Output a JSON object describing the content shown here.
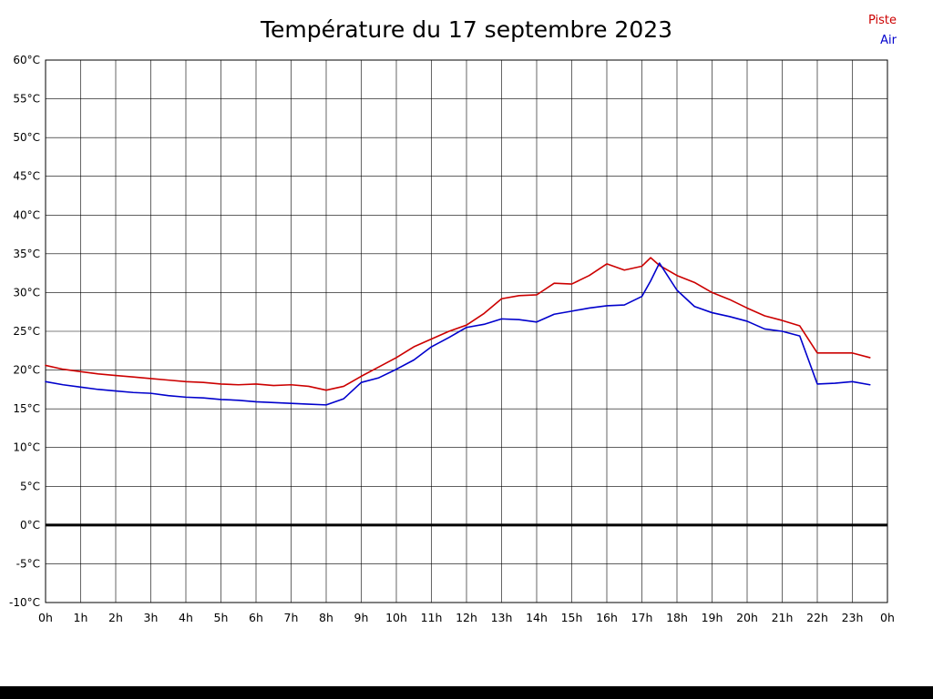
{
  "title": "Température du 17 septembre 2023",
  "legend": [
    {
      "label": "Piste",
      "color": "#cc0000"
    },
    {
      "label": "Air",
      "color": "#0000cc"
    }
  ],
  "chart_data": {
    "type": "line",
    "title": "Température du 17 septembre 2023",
    "xlabel": "",
    "ylabel": "",
    "ylim": [
      -10,
      60
    ],
    "ytick_step": 5,
    "ytick_suffix": "°C",
    "grid": true,
    "zero_line_value": 0,
    "legend_position": "top-right",
    "xtick_labels": [
      "0h",
      "1h",
      "2h",
      "3h",
      "4h",
      "5h",
      "6h",
      "7h",
      "8h",
      "9h",
      "10h",
      "11h",
      "12h",
      "13h",
      "14h",
      "15h",
      "16h",
      "17h",
      "18h",
      "19h",
      "20h",
      "21h",
      "22h",
      "23h",
      "0h"
    ],
    "x_hours": [
      0,
      0.5,
      1,
      1.5,
      2,
      2.5,
      3,
      3.5,
      4,
      4.5,
      5,
      5.5,
      6,
      6.5,
      7,
      7.5,
      8,
      8.5,
      9,
      9.5,
      10,
      10.5,
      11,
      11.5,
      12,
      12.5,
      13,
      13.5,
      14,
      14.5,
      15,
      15.5,
      16,
      16.5,
      17,
      17.25,
      17.5,
      18,
      18.5,
      19,
      19.5,
      20,
      20.5,
      21,
      21.5,
      22,
      22.5,
      23,
      23.5
    ],
    "series": [
      {
        "name": "Piste",
        "color": "#cc0000",
        "values": [
          20.6,
          20.1,
          19.8,
          19.5,
          19.3,
          19.1,
          18.9,
          18.7,
          18.5,
          18.4,
          18.2,
          18.1,
          18.2,
          18.0,
          18.1,
          17.9,
          17.4,
          17.9,
          19.2,
          20.4,
          21.6,
          23.0,
          24.0,
          25.0,
          25.8,
          27.3,
          29.2,
          29.6,
          29.7,
          31.2,
          31.1,
          32.2,
          33.7,
          32.9,
          33.4,
          34.5,
          33.5,
          32.2,
          31.3,
          30.0,
          29.1,
          28.0,
          27.0,
          26.4,
          25.7,
          22.2,
          22.2,
          22.2,
          21.6
        ]
      },
      {
        "name": "Air",
        "color": "#0000cc",
        "values": [
          18.5,
          18.1,
          17.8,
          17.5,
          17.3,
          17.1,
          17.0,
          16.7,
          16.5,
          16.4,
          16.2,
          16.1,
          15.9,
          15.8,
          15.7,
          15.6,
          15.5,
          16.3,
          18.4,
          19.0,
          20.1,
          21.3,
          23.0,
          24.2,
          25.5,
          25.9,
          26.6,
          26.5,
          26.2,
          27.2,
          27.6,
          28.0,
          28.3,
          28.4,
          29.5,
          31.5,
          33.8,
          30.3,
          28.2,
          27.4,
          26.9,
          26.3,
          25.3,
          25.0,
          24.4,
          18.2,
          18.3,
          18.5,
          18.1
        ]
      }
    ]
  }
}
